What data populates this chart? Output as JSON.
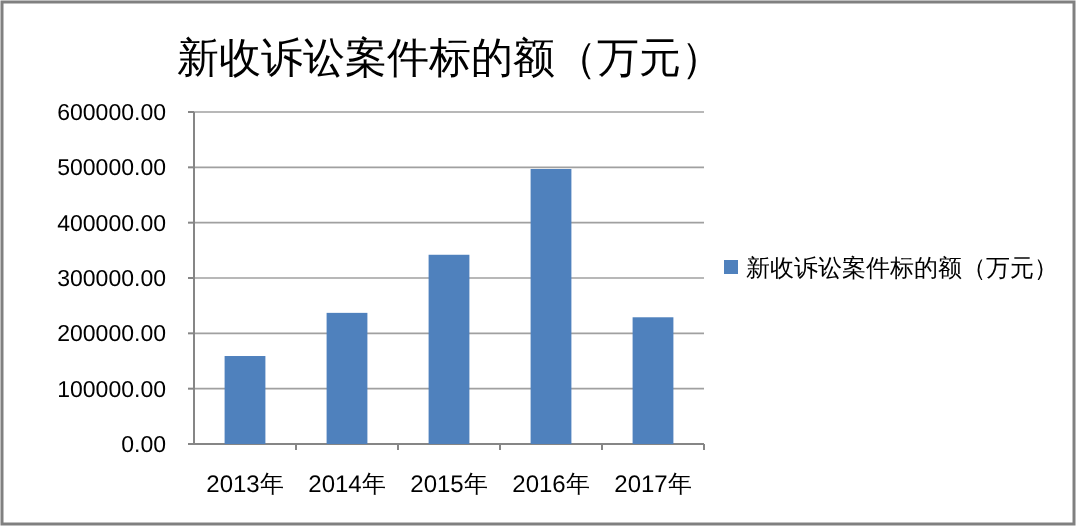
{
  "chart_data": {
    "type": "bar",
    "title": "新收诉讼案件标的额（万元）",
    "categories": [
      "2013年",
      "2014年",
      "2015年",
      "2016年",
      "2017年"
    ],
    "series": [
      {
        "name": "新收诉讼案件标的额（万元）",
        "color": "#4f81bd",
        "values": [
          159000,
          237000,
          342000,
          497000,
          229000
        ]
      }
    ],
    "ylim": [
      0,
      600000
    ],
    "yticks": [
      {
        "value": 0,
        "label": "0.00"
      },
      {
        "value": 100000,
        "label": "100000.00"
      },
      {
        "value": 200000,
        "label": "200000.00"
      },
      {
        "value": 300000,
        "label": "300000.00"
      },
      {
        "value": 400000,
        "label": "400000.00"
      },
      {
        "value": 500000,
        "label": "500000.00"
      },
      {
        "value": 600000,
        "label": "600000.00"
      }
    ],
    "grid": "y",
    "legend": "right"
  }
}
